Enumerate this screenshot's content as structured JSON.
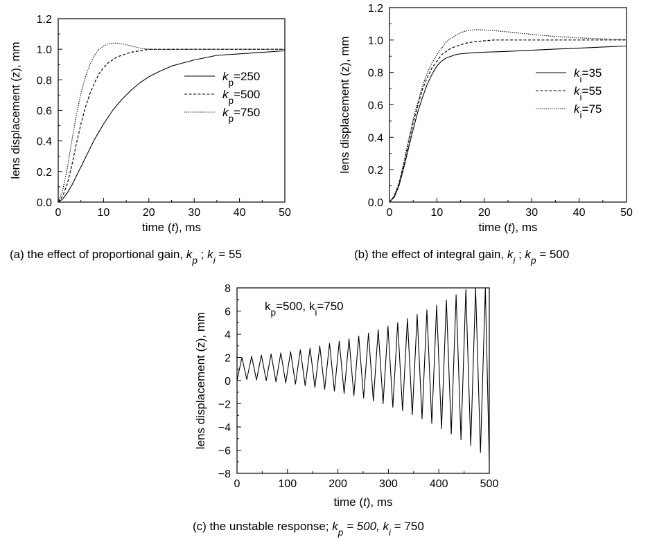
{
  "chart_data": [
    {
      "id": "a",
      "type": "line",
      "caption": {
        "prefix": "(a)   the effect of proportional gain, ",
        "k1": "k",
        "k1_sub": "p",
        "middle": " ;  ",
        "k2": "k",
        "k2_sub": "i",
        "suffix": " = 55"
      },
      "xlabel": {
        "before": "time (",
        "var": "t",
        "after": "), ms"
      },
      "ylabel": "lens displacement (z), mm",
      "xlim": [
        0,
        50
      ],
      "ylim": [
        0,
        1.2
      ],
      "x_ticks": [
        "0",
        "10",
        "20",
        "30",
        "40",
        "50"
      ],
      "y_ticks": [
        "0.0",
        "0.2",
        "0.4",
        "0.6",
        "0.8",
        "1.0",
        "1.2"
      ],
      "legend_position": "right",
      "series": [
        {
          "name": "kp=250",
          "legend": {
            "k": "k",
            "sub": "p",
            "val": "=250"
          },
          "style": "solid",
          "x": [
            0,
            1,
            2,
            3,
            4,
            5,
            6,
            7,
            8,
            9,
            10,
            12,
            14,
            16,
            18,
            20,
            22,
            25,
            30,
            35,
            40,
            45,
            50
          ],
          "y": [
            0,
            0.02,
            0.06,
            0.11,
            0.17,
            0.23,
            0.29,
            0.35,
            0.41,
            0.46,
            0.51,
            0.6,
            0.67,
            0.73,
            0.78,
            0.82,
            0.85,
            0.89,
            0.93,
            0.96,
            0.97,
            0.98,
            0.99
          ]
        },
        {
          "name": "kp=500",
          "legend": {
            "k": "k",
            "sub": "p",
            "val": "=500"
          },
          "style": "dashed",
          "x": [
            0,
            1,
            2,
            3,
            4,
            5,
            6,
            7,
            8,
            9,
            10,
            11,
            12,
            13,
            14,
            15,
            16,
            18,
            20,
            22,
            25,
            30,
            40,
            50
          ],
          "y": [
            0,
            0.04,
            0.12,
            0.24,
            0.38,
            0.51,
            0.62,
            0.71,
            0.78,
            0.84,
            0.88,
            0.91,
            0.93,
            0.95,
            0.96,
            0.97,
            0.98,
            0.99,
            1.0,
            1.0,
            1.0,
            1.0,
            1.0,
            1.0
          ]
        },
        {
          "name": "kp=750",
          "legend": {
            "k": "k",
            "sub": "p",
            "val": "=750"
          },
          "style": "dotted",
          "x": [
            0,
            1,
            2,
            3,
            4,
            5,
            6,
            7,
            8,
            9,
            10,
            11,
            12,
            13,
            14,
            15,
            16,
            17,
            18,
            19,
            20,
            22,
            25,
            30,
            40,
            50
          ],
          "y": [
            0,
            0.08,
            0.22,
            0.4,
            0.57,
            0.71,
            0.82,
            0.9,
            0.96,
            1.0,
            1.02,
            1.035,
            1.04,
            1.04,
            1.035,
            1.03,
            1.022,
            1.015,
            1.008,
            1.003,
            1.0,
            0.998,
            0.999,
            1.0,
            1.0,
            1.0
          ]
        }
      ]
    },
    {
      "id": "b",
      "type": "line",
      "caption": {
        "prefix": "(b)   the effect of integral gain, ",
        "k1": "k",
        "k1_sub": "i",
        "middle": " ;  ",
        "k2": "k",
        "k2_sub": "p",
        "suffix": " = 500"
      },
      "xlabel": {
        "before": "time (",
        "var": "t",
        "after": "), ms"
      },
      "ylabel": "lens displacement (z), mm",
      "xlim": [
        0,
        50
      ],
      "ylim": [
        0,
        1.2
      ],
      "x_ticks": [
        "0",
        "10",
        "20",
        "30",
        "40",
        "50"
      ],
      "y_ticks": [
        "0.0",
        "0.2",
        "0.4",
        "0.6",
        "0.8",
        "1.0",
        "1.2"
      ],
      "legend_position": "right",
      "series": [
        {
          "name": "ki=35",
          "legend": {
            "k": "k",
            "sub": "i",
            "val": "=35"
          },
          "style": "solid",
          "x": [
            0,
            1,
            2,
            3,
            4,
            5,
            6,
            7,
            8,
            9,
            10,
            11,
            12,
            13,
            14,
            15,
            17,
            20,
            25,
            30,
            35,
            40,
            45,
            50
          ],
          "y": [
            0,
            0.03,
            0.1,
            0.21,
            0.33,
            0.45,
            0.56,
            0.65,
            0.73,
            0.79,
            0.84,
            0.87,
            0.89,
            0.9,
            0.91,
            0.915,
            0.92,
            0.925,
            0.93,
            0.937,
            0.944,
            0.95,
            0.957,
            0.963
          ]
        },
        {
          "name": "ki=55",
          "legend": {
            "k": "k",
            "sub": "i",
            "val": "=55"
          },
          "style": "dashed",
          "x": [
            0,
            1,
            2,
            3,
            4,
            5,
            6,
            7,
            8,
            9,
            10,
            11,
            12,
            13,
            14,
            15,
            16,
            18,
            20,
            22,
            25,
            30,
            40,
            50
          ],
          "y": [
            0,
            0.035,
            0.11,
            0.23,
            0.36,
            0.49,
            0.6,
            0.7,
            0.77,
            0.83,
            0.87,
            0.91,
            0.93,
            0.95,
            0.96,
            0.97,
            0.98,
            0.99,
            0.995,
            1.0,
            1.0,
            1.0,
            1.0,
            1.0
          ]
        },
        {
          "name": "ki=75",
          "legend": {
            "k": "k",
            "sub": "i",
            "val": "=75"
          },
          "style": "dotted",
          "x": [
            0,
            1,
            2,
            3,
            4,
            5,
            6,
            7,
            8,
            9,
            10,
            11,
            12,
            13,
            14,
            15,
            16,
            17,
            18,
            19,
            20,
            22,
            25,
            30,
            35,
            40,
            45,
            50
          ],
          "y": [
            0,
            0.04,
            0.12,
            0.24,
            0.38,
            0.51,
            0.62,
            0.72,
            0.8,
            0.86,
            0.91,
            0.95,
            0.99,
            1.01,
            1.03,
            1.045,
            1.055,
            1.06,
            1.063,
            1.063,
            1.062,
            1.058,
            1.05,
            1.035,
            1.022,
            1.013,
            1.007,
            1.003
          ]
        }
      ]
    },
    {
      "id": "c",
      "type": "line",
      "caption": {
        "prefix": "(c)   the unstable response; ",
        "k1": "k",
        "k1_sub": "p",
        "middle": " = 500,  ",
        "k2": "k",
        "k2_sub": "i",
        "suffix": " = 750"
      },
      "xlabel": {
        "before": "time (",
        "var": "t",
        "after": "), ms"
      },
      "ylabel": "lens displacement (z), mm",
      "xlim": [
        0,
        500
      ],
      "ylim": [
        -8,
        8
      ],
      "x_ticks": [
        "0",
        "100",
        "200",
        "300",
        "400",
        "500"
      ],
      "y_ticks": [
        "−8",
        "−6",
        "−4",
        "−2",
        "0",
        "2",
        "4",
        "6",
        "8"
      ],
      "annotation": {
        "k1": "k",
        "k1_sub": "p",
        "v1": "=500,  ",
        "k2": "k",
        "k2_sub": "i",
        "v2": "=750"
      },
      "series": [
        {
          "name": "",
          "style": "solid",
          "x": [
            0,
            9.65,
            19.3,
            28.95,
            38.6,
            48.25,
            57.9,
            67.55,
            77.2,
            86.85,
            96.5,
            106.15,
            115.8,
            125.45,
            135.1,
            144.75,
            154.4,
            164.05,
            173.7,
            183.35,
            193,
            202.65,
            212.3,
            221.95,
            231.6,
            241.25,
            250.9,
            260.55,
            270.2,
            279.85,
            289.5,
            299.15,
            308.8,
            318.45,
            328.1,
            337.75,
            347.4,
            357.05,
            366.7,
            376.35,
            386,
            395.65,
            405.3,
            414.95,
            424.6,
            434.25,
            443.9,
            453.55,
            463.2,
            472.85,
            482.5,
            492.15,
            500
          ],
          "y": [
            0,
            2.0,
            0.1,
            2.1,
            0.05,
            2.2,
            0.0,
            2.3,
            -0.1,
            2.4,
            -0.2,
            2.5,
            -0.3,
            2.65,
            -0.45,
            2.8,
            -0.6,
            3.0,
            -0.75,
            3.2,
            -0.9,
            3.4,
            -1.1,
            3.6,
            -1.3,
            3.85,
            -1.5,
            4.1,
            -1.75,
            4.4,
            -2.0,
            4.7,
            -2.3,
            5.0,
            -2.6,
            5.35,
            -2.95,
            5.7,
            -3.3,
            6.1,
            -3.7,
            6.5,
            -4.15,
            6.95,
            -4.6,
            7.4,
            -5.1,
            7.85,
            -5.6,
            8.0,
            -6.2,
            8.0,
            -7.0
          ]
        }
      ]
    }
  ]
}
